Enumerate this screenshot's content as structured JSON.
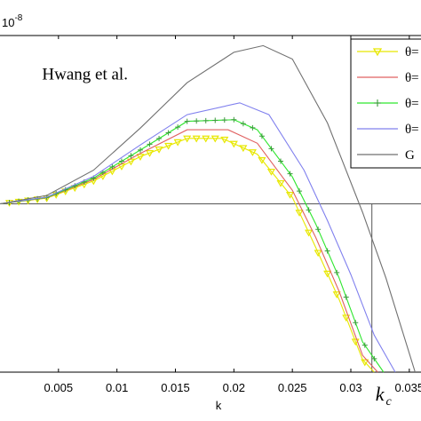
{
  "chart_data": {
    "type": "line",
    "title": "",
    "xlabel": "k",
    "ylabel": "",
    "exponent_label": "10",
    "exponent_power": "-8",
    "xlim": [
      0,
      0.036
    ],
    "ylim": [
      -1.0,
      1.0
    ],
    "xticks": [
      0.005,
      0.01,
      0.015,
      0.02,
      0.025,
      0.03,
      0.035
    ],
    "xtick_labels": [
      "0.005",
      "0.01",
      "0.015",
      "0.02",
      "0.025",
      "0.03",
      "0.035"
    ],
    "annotations": [
      {
        "text": "Hwang et al.",
        "x": 0.0036,
        "y": 0.77
      },
      {
        "text": "k",
        "subscript": "c",
        "x": 0.0318,
        "y": -1.01
      }
    ],
    "legend": {
      "placement": "top-right",
      "entries": [
        "θ=",
        "θ=",
        "θ=",
        "θ=",
        "G"
      ]
    },
    "reference_lines": [
      {
        "orientation": "horizontal",
        "y": 0.0
      },
      {
        "orientation": "vertical",
        "x": 0.0318,
        "y_from": -1.0,
        "y_to": 0.0
      }
    ],
    "series": [
      {
        "color": "#e8e800",
        "marker": "triangle-down",
        "x": [
          0,
          0.004,
          0.008,
          0.012,
          0.016,
          0.019,
          0.022,
          0.025,
          0.027,
          0.029,
          0.031,
          0.032
        ],
        "y": [
          0,
          0.034,
          0.136,
          0.281,
          0.389,
          0.389,
          0.295,
          0.038,
          -0.259,
          -0.568,
          -0.925,
          -1.0
        ]
      },
      {
        "color": "#e06060",
        "marker": "none",
        "x": [
          0,
          0.004,
          0.008,
          0.012,
          0.016,
          0.0195,
          0.022,
          0.025,
          0.027,
          0.029,
          0.031,
          0.0323
        ],
        "y": [
          0,
          0.036,
          0.145,
          0.3,
          0.44,
          0.44,
          0.36,
          0.08,
          -0.2,
          -0.52,
          -0.9,
          -1.0
        ]
      },
      {
        "color": "#2ee62e",
        "marker": "plus",
        "x": [
          0,
          0.004,
          0.008,
          0.012,
          0.016,
          0.02,
          0.022,
          0.025,
          0.027,
          0.029,
          0.031,
          0.0328
        ],
        "y": [
          0,
          0.038,
          0.153,
          0.32,
          0.49,
          0.5,
          0.44,
          0.16,
          -0.12,
          -0.44,
          -0.82,
          -1.0
        ]
      },
      {
        "color": "#8080ee",
        "marker": "none",
        "x": [
          0,
          0.004,
          0.008,
          0.012,
          0.016,
          0.0205,
          0.023,
          0.026,
          0.028,
          0.03,
          0.032,
          0.0338
        ],
        "y": [
          0,
          0.04,
          0.163,
          0.35,
          0.53,
          0.6,
          0.53,
          0.2,
          -0.1,
          -0.42,
          -0.78,
          -1.0
        ]
      },
      {
        "color": "#707070",
        "marker": "none",
        "x": [
          0,
          0.004,
          0.008,
          0.012,
          0.016,
          0.02,
          0.0225,
          0.025,
          0.028,
          0.031,
          0.033,
          0.0355
        ],
        "y": [
          0,
          0.05,
          0.2,
          0.45,
          0.72,
          0.9,
          0.94,
          0.86,
          0.48,
          -0.05,
          -0.44,
          -1.0
        ]
      }
    ]
  }
}
